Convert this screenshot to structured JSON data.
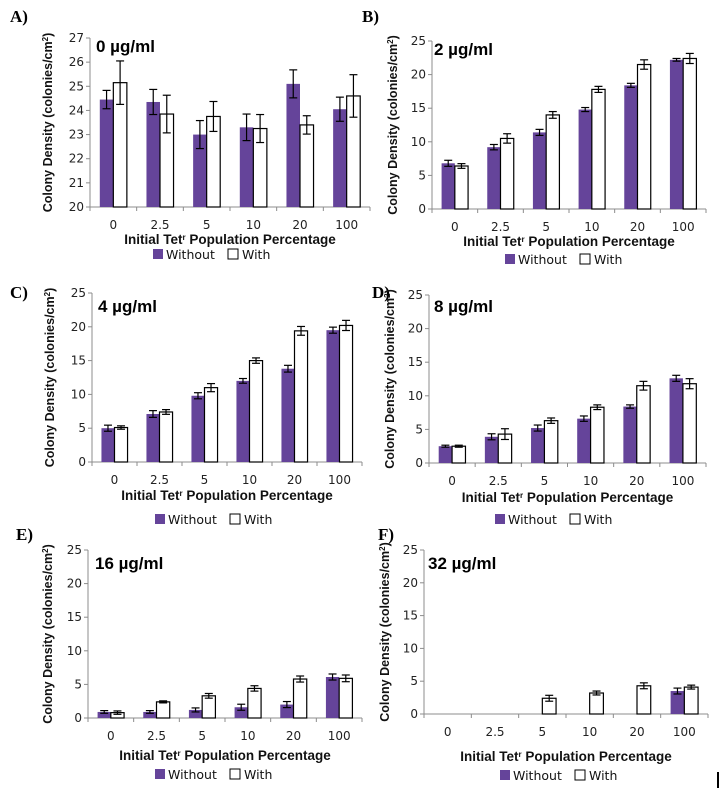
{
  "figure": {
    "legend": {
      "without": "Without",
      "with": "With"
    },
    "colors": {
      "without": "#65449a",
      "with": "#ffffff",
      "with_stroke": "#000000"
    },
    "xlabel_prefix": "Initial Tet",
    "xlabel_sup": "r",
    "xlabel_suffix": " Population Percentage",
    "ylabel_main": "Colony Density (colonies/cm",
    "ylabel_sup": "2",
    "ylabel_end": ")"
  },
  "chart_data": [
    {
      "type": "bar",
      "panel": "A)",
      "title": "0 µg/ml",
      "categories": [
        "0",
        "2.5",
        "5",
        "10",
        "20",
        "100"
      ],
      "xlabel": "Initial Tet^r Population Percentage",
      "ylabel": "Colony Density (colonies/cm^2)",
      "ylim": [
        20,
        27
      ],
      "yticks": [
        20,
        21,
        22,
        23,
        24,
        25,
        26,
        27
      ],
      "legend_position": "bottom",
      "series": [
        {
          "name": "Without",
          "values": [
            24.45,
            24.35,
            23.0,
            23.3,
            25.1,
            24.05
          ],
          "errors": [
            0.38,
            0.52,
            0.58,
            0.55,
            0.58,
            0.5
          ]
        },
        {
          "name": "With",
          "values": [
            25.15,
            23.85,
            23.75,
            23.25,
            23.4,
            24.6
          ],
          "errors": [
            0.9,
            0.78,
            0.62,
            0.58,
            0.38,
            0.88
          ]
        }
      ]
    },
    {
      "type": "bar",
      "panel": "B)",
      "title": "2 µg/ml",
      "categories": [
        "0",
        "2.5",
        "5",
        "10",
        "20",
        "100"
      ],
      "xlabel": "Initial Tet^r Population Percentage",
      "ylabel": "Colony Density (colonies/cm^2)",
      "ylim": [
        0,
        25
      ],
      "yticks": [
        0,
        5,
        10,
        15,
        20,
        25
      ],
      "legend_position": "bottom",
      "series": [
        {
          "name": "Without",
          "values": [
            6.8,
            9.2,
            11.4,
            14.8,
            18.4,
            22.2
          ],
          "errors": [
            0.45,
            0.4,
            0.45,
            0.3,
            0.3,
            0.2
          ]
        },
        {
          "name": "With",
          "values": [
            6.4,
            10.5,
            14.0,
            17.8,
            21.5,
            22.4
          ],
          "errors": [
            0.35,
            0.7,
            0.5,
            0.45,
            0.7,
            0.75
          ]
        }
      ]
    },
    {
      "type": "bar",
      "panel": "C)",
      "title": "4 µg/ml",
      "categories": [
        "0",
        "2.5",
        "5",
        "10",
        "20",
        "100"
      ],
      "xlabel": "Initial Tet^r Population Percentage",
      "ylabel": "Colony Density (colonies/cm^2)",
      "ylim": [
        0,
        25
      ],
      "yticks": [
        0,
        5,
        10,
        15,
        20,
        25
      ],
      "legend_position": "bottom",
      "series": [
        {
          "name": "Without",
          "values": [
            5.0,
            7.1,
            9.8,
            12.0,
            13.8,
            19.5
          ],
          "errors": [
            0.45,
            0.5,
            0.45,
            0.35,
            0.5,
            0.45
          ]
        },
        {
          "name": "With",
          "values": [
            5.1,
            7.4,
            11.0,
            15.0,
            19.4,
            20.2
          ],
          "errors": [
            0.25,
            0.35,
            0.6,
            0.4,
            0.65,
            0.75
          ]
        }
      ]
    },
    {
      "type": "bar",
      "panel": "D)",
      "title": "8 µg/ml",
      "categories": [
        "0",
        "2.5",
        "5",
        "10",
        "20",
        "100"
      ],
      "xlabel": "Initial Tet^r Population Percentage",
      "ylabel": "Colony Density (colonies/cm^2)",
      "ylim": [
        0,
        25
      ],
      "yticks": [
        0,
        5,
        10,
        15,
        20,
        25
      ],
      "legend_position": "bottom",
      "series": [
        {
          "name": "Without",
          "values": [
            2.5,
            3.9,
            5.2,
            6.6,
            8.4,
            12.6
          ],
          "errors": [
            0.15,
            0.45,
            0.45,
            0.4,
            0.25,
            0.45
          ]
        },
        {
          "name": "With",
          "values": [
            2.5,
            4.3,
            6.3,
            8.3,
            11.5,
            11.8
          ],
          "errors": [
            0.15,
            0.8,
            0.4,
            0.35,
            0.65,
            0.75
          ]
        }
      ]
    },
    {
      "type": "bar",
      "panel": "E)",
      "title": "16 µg/ml",
      "categories": [
        "0",
        "2.5",
        "5",
        "10",
        "20",
        "100"
      ],
      "xlabel": "Initial Tet^r Population Percentage",
      "ylabel": "Colony Density (colonies/cm^2)",
      "ylim": [
        0,
        25
      ],
      "yticks": [
        0,
        5,
        10,
        15,
        20,
        25
      ],
      "legend_position": "bottom",
      "series": [
        {
          "name": "Without",
          "values": [
            0.9,
            0.9,
            1.2,
            1.6,
            2.0,
            6.1
          ],
          "errors": [
            0.2,
            0.2,
            0.3,
            0.45,
            0.45,
            0.45
          ]
        },
        {
          "name": "With",
          "values": [
            0.8,
            2.4,
            3.3,
            4.4,
            5.8,
            5.9
          ],
          "errors": [
            0.25,
            0.15,
            0.35,
            0.4,
            0.45,
            0.5
          ]
        }
      ]
    },
    {
      "type": "bar",
      "panel": "F)",
      "title": "32 µg/ml",
      "categories": [
        "0",
        "2.5",
        "5",
        "10",
        "20",
        "100"
      ],
      "xlabel": "Initial Tet^r Population Percentage",
      "ylabel": "Colony Density (colonies/cm^2)",
      "ylim": [
        0,
        25
      ],
      "yticks": [
        0,
        5,
        10,
        15,
        20,
        25
      ],
      "legend_position": "bottom",
      "series": [
        {
          "name": "Without",
          "values": [
            0,
            0,
            0,
            0,
            0,
            3.5
          ],
          "errors": [
            0,
            0,
            0,
            0,
            0,
            0.45
          ]
        },
        {
          "name": "With",
          "values": [
            0,
            0,
            2.4,
            3.2,
            4.3,
            4.1
          ],
          "errors": [
            0,
            0,
            0.45,
            0.3,
            0.45,
            0.3
          ]
        }
      ]
    }
  ]
}
